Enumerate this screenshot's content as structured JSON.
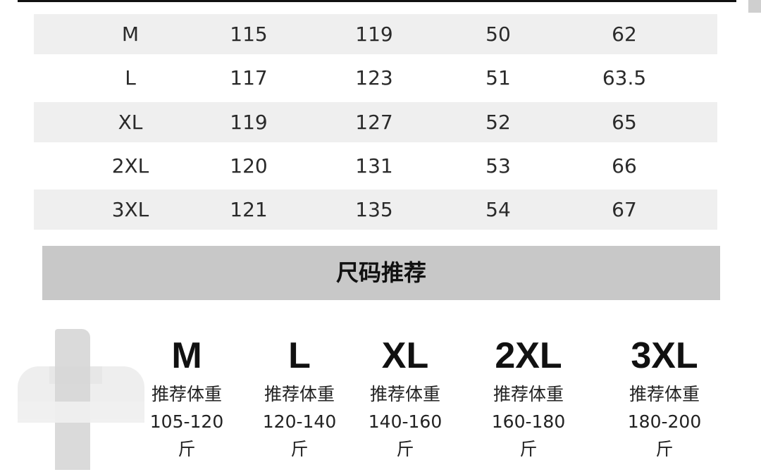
{
  "table": {
    "rows": [
      [
        "M",
        "115",
        "119",
        "50",
        "62"
      ],
      [
        "L",
        "117",
        "123",
        "51",
        "63.5"
      ],
      [
        "XL",
        "119",
        "127",
        "52",
        "65"
      ],
      [
        "2XL",
        "120",
        "131",
        "53",
        "66"
      ],
      [
        "3XL",
        "121",
        "135",
        "54",
        "67"
      ]
    ]
  },
  "banner": {
    "title": "尺码推荐"
  },
  "recommendations": [
    {
      "size": "M",
      "label": "推荐体重",
      "range": "105-120",
      "unit": "斤"
    },
    {
      "size": "L",
      "label": "推荐体重",
      "range": "120-140",
      "unit": "斤"
    },
    {
      "size": "XL",
      "label": "推荐体重",
      "range": "140-160",
      "unit": "斤"
    },
    {
      "size": "2XL",
      "label": "推荐体重",
      "range": "160-180",
      "unit": "斤"
    },
    {
      "size": "3XL",
      "label": "推荐体重",
      "range": "180-200",
      "unit": "斤"
    }
  ]
}
